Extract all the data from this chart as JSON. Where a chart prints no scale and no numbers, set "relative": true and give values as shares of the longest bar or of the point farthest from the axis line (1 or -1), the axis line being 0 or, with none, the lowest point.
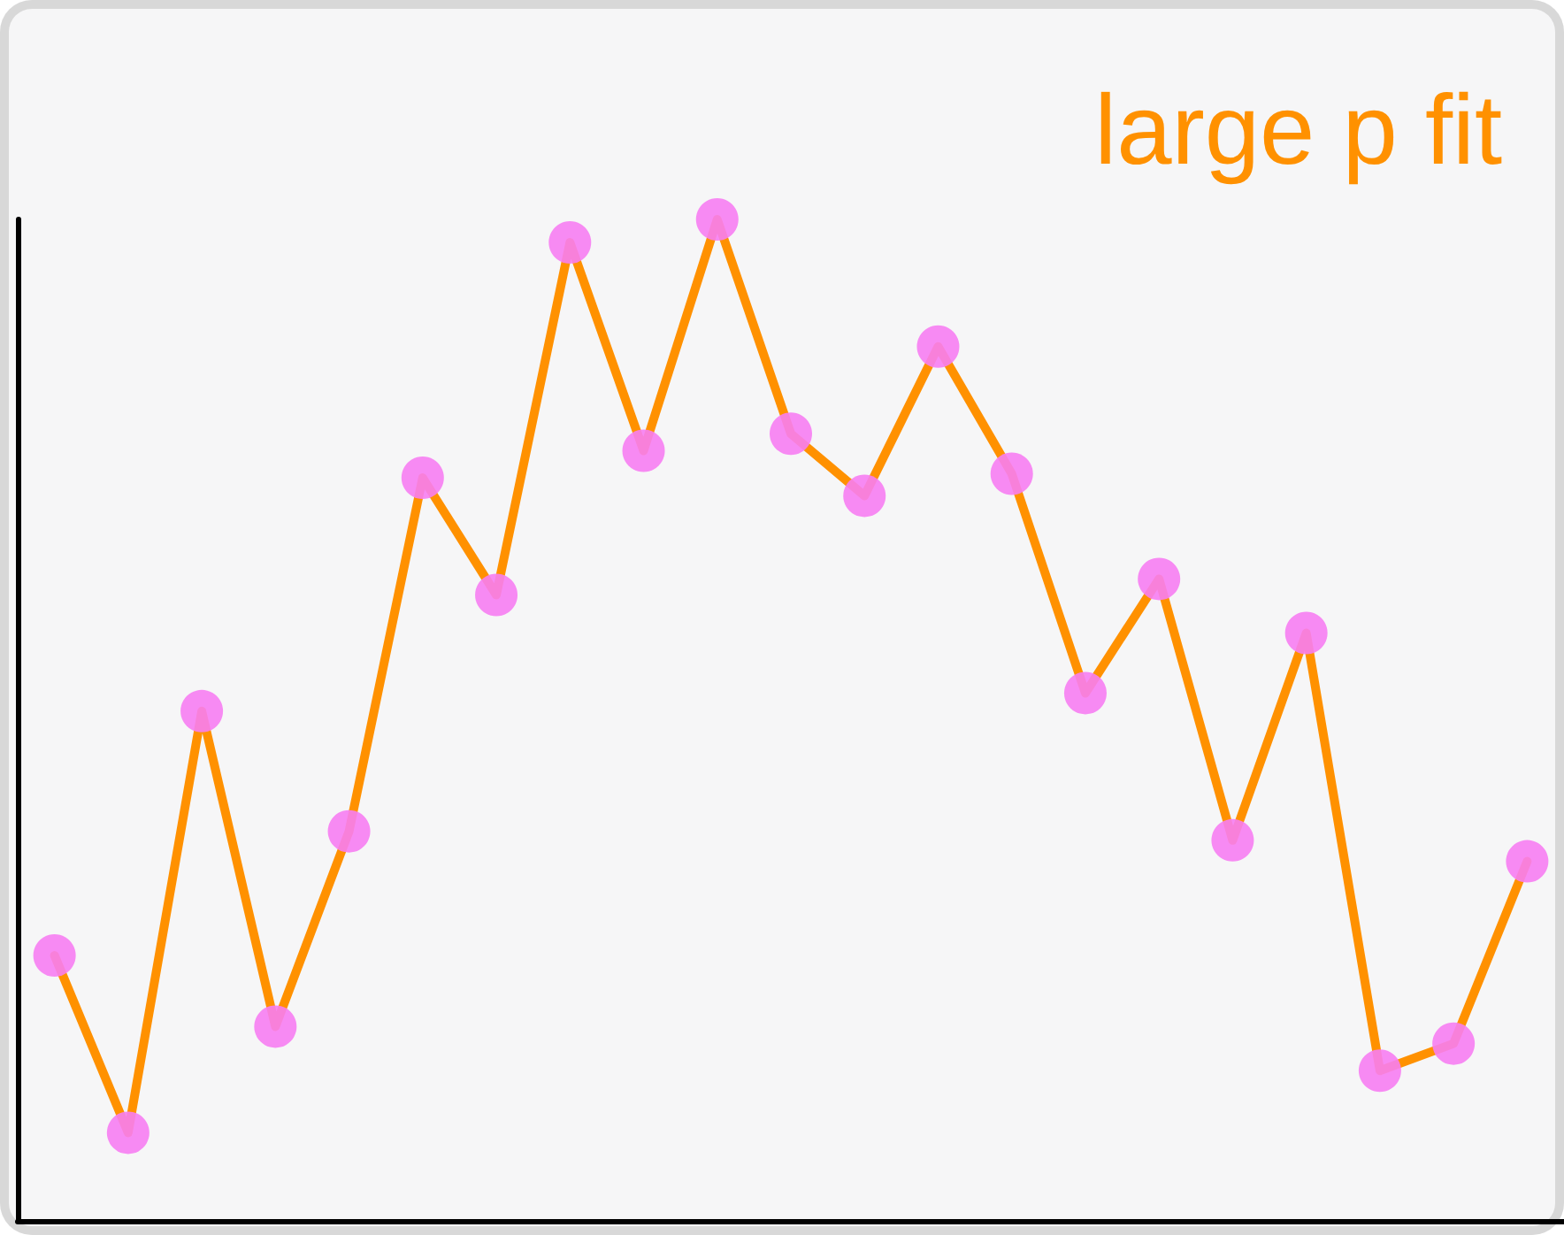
{
  "chart_data": {
    "type": "line",
    "title": "large p fit",
    "relative": true,
    "marker": "circle",
    "line_style": "solid",
    "grid": false,
    "categories": [
      null,
      null,
      null,
      null,
      null,
      null,
      null,
      null,
      null,
      null,
      null,
      null,
      null,
      null,
      null,
      null,
      null,
      null,
      null,
      null,
      null
    ],
    "series": [
      {
        "color": "#ff9100",
        "colors": [
          "#f77ef2",
          "#f77ef2",
          "#f77ef2",
          "#f77ef2",
          "#f77ef2",
          "#f77ef2",
          "#f77ef2",
          "#f77ef2",
          "#f77ef2",
          "#f77ef2",
          "#f77ef2",
          "#f77ef2",
          "#f77ef2",
          "#f77ef2",
          "#f77ef2",
          "#f77ef2",
          "#f77ef2",
          "#f77ef2",
          "#f77ef2",
          "#f77ef2",
          "#f77ef2"
        ],
        "values": [
          0.265,
          0.088,
          0.509,
          0.194,
          0.389,
          0.742,
          0.625,
          0.977,
          0.769,
          1,
          0.786,
          0.724,
          0.873,
          0.746,
          0.527,
          0.641,
          0.38,
          0.587,
          0.15,
          0.177,
          0.359
        ]
      }
    ]
  }
}
